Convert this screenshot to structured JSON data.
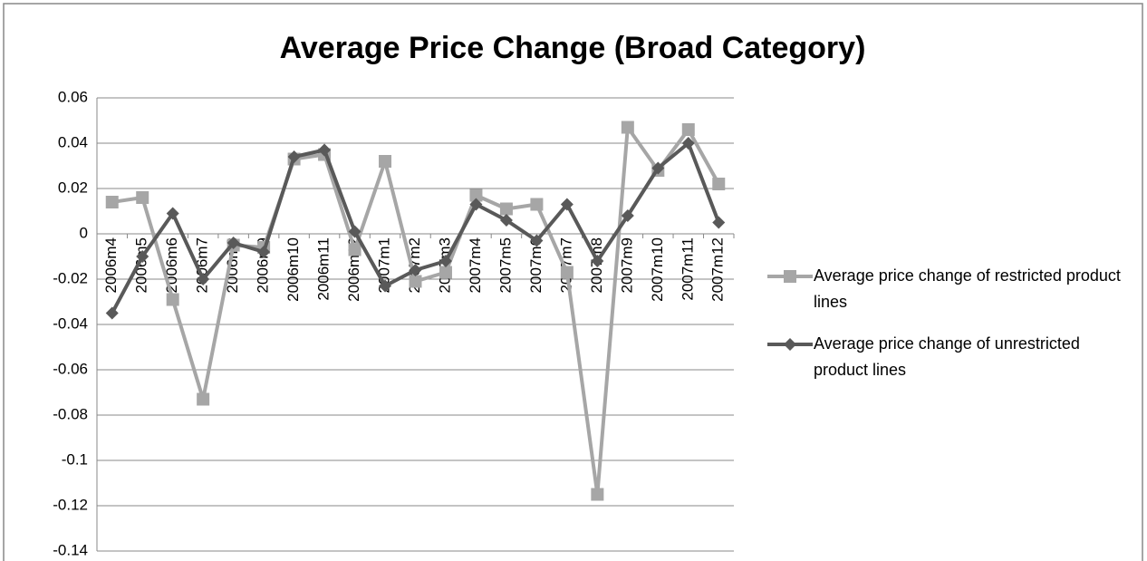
{
  "chart_data": {
    "type": "line",
    "title": "Average Price Change (Broad Category)",
    "categories": [
      "2006m4",
      "2006m5",
      "2006m6",
      "2006m7",
      "2006m8",
      "2006m9",
      "2006m10",
      "2006m11",
      "2006m12",
      "2007m1",
      "2007m2",
      "2007m3",
      "2007m4",
      "2007m5",
      "2007m6",
      "2007m7",
      "2007m8",
      "2007m9",
      "2007m10",
      "2007m11",
      "2007m12"
    ],
    "series": [
      {
        "name": "Average price change of restricted product lines",
        "color": "#a6a6a6",
        "marker": "square",
        "values": [
          0.014,
          0.016,
          -0.029,
          -0.073,
          -0.005,
          -0.006,
          0.033,
          0.035,
          -0.007,
          0.032,
          -0.021,
          -0.017,
          0.017,
          0.011,
          0.013,
          -0.017,
          -0.115,
          0.047,
          0.028,
          0.046,
          0.022
        ]
      },
      {
        "name": "Average price change of unrestricted product lines",
        "color": "#595959",
        "marker": "diamond",
        "values": [
          -0.035,
          -0.01,
          0.009,
          -0.02,
          -0.004,
          -0.008,
          0.034,
          0.037,
          0.001,
          -0.023,
          -0.016,
          -0.012,
          0.013,
          0.006,
          -0.003,
          0.013,
          -0.012,
          0.008,
          0.029,
          0.04,
          0.005
        ]
      }
    ],
    "ylim": [
      -0.14,
      0.06
    ],
    "yticks": [
      0.06,
      0.04,
      0.02,
      0,
      -0.02,
      -0.04,
      -0.06,
      -0.08,
      -0.1,
      -0.12,
      -0.14
    ],
    "grid": true,
    "legend": "right"
  }
}
